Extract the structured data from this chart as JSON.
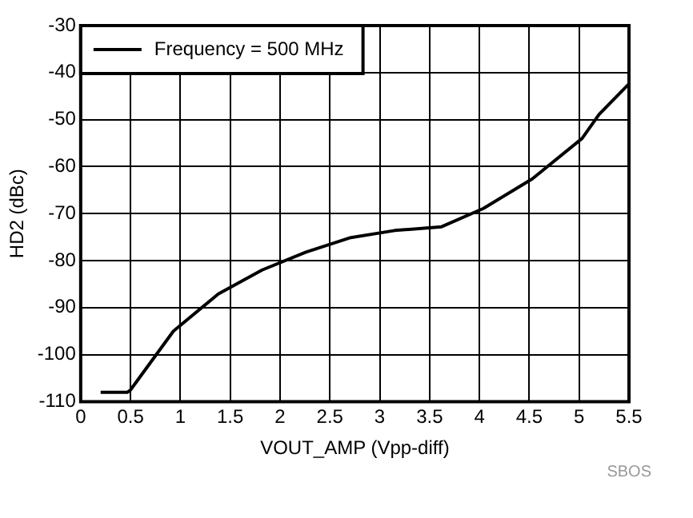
{
  "chart_data": {
    "type": "line",
    "xlabel": "VOUT_AMP (Vpp-diff)",
    "ylabel": "HD2 (dBc)",
    "annotations": [
      "SBOS"
    ],
    "x": [
      0.2,
      0.47,
      0.5,
      0.93,
      1.38,
      1.82,
      2.26,
      2.71,
      3.15,
      3.62,
      4.04,
      4.53,
      5.03,
      5.2,
      5.5
    ],
    "series": [
      {
        "name": "Frequency = 500 MHz",
        "color": "#000000",
        "values": [
          -108,
          -108,
          -107.5,
          -95,
          -87.1,
          -82,
          -78.2,
          -75.1,
          -73.6,
          -72.8,
          -68.9,
          -62.6,
          -54,
          -48.9,
          -42.4
        ]
      }
    ],
    "xlim": [
      0,
      5.5
    ],
    "xticks": [
      0,
      0.5,
      1,
      1.5,
      2,
      2.5,
      3,
      3.5,
      4,
      4.5,
      5,
      5.5
    ],
    "ylim": [
      -110,
      -30
    ],
    "yticks": [
      -110,
      -100,
      -90,
      -80,
      -70,
      -60,
      -50,
      -40,
      -30
    ],
    "grid": true,
    "legend": "top left",
    "marker": "none",
    "line_style": "solid"
  }
}
